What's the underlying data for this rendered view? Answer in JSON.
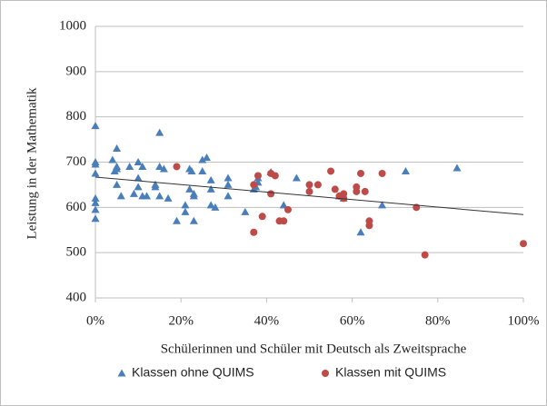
{
  "chart_data": {
    "type": "scatter",
    "x_label": "Schülerinnen und Schüler mit Deutsch als Zweitsprache",
    "y_label": "Leistung in der  Mathematik",
    "xlim": [
      0,
      100
    ],
    "xticks": [
      {
        "value": 0,
        "label": "0%"
      },
      {
        "value": 20,
        "label": "20%"
      },
      {
        "value": 40,
        "label": "40%"
      },
      {
        "value": 60,
        "label": "60%"
      },
      {
        "value": 80,
        "label": "80%"
      },
      {
        "value": 100,
        "label": "100%"
      }
    ],
    "ylim": [
      400,
      1000
    ],
    "yticks": [
      400,
      500,
      600,
      700,
      800,
      900,
      1000
    ],
    "grid": true,
    "legend": "bottom",
    "series": [
      {
        "name": "Klassen ohne QUIMS",
        "color": "#4a7ebb",
        "marker": "triangle",
        "x": [
          0,
          0,
          0,
          0,
          0,
          0,
          0,
          0,
          4,
          4.5,
          5,
          5,
          5,
          5,
          6,
          8,
          9,
          10,
          10,
          10,
          11,
          11,
          12,
          14,
          14,
          15,
          15,
          15,
          16,
          17,
          19,
          21,
          21,
          22,
          22,
          22.5,
          23,
          23,
          23,
          25,
          25,
          26,
          27,
          27,
          27,
          28,
          31,
          31,
          31,
          35,
          37,
          37.5,
          38,
          38,
          41,
          44,
          47,
          57,
          58,
          62,
          67,
          72.5,
          84.5
        ],
        "values": [
          780,
          700,
          695,
          675,
          620,
          610,
          595,
          575,
          705,
          680,
          730,
          690,
          685,
          650,
          625,
          690,
          630,
          700,
          665,
          645,
          690,
          625,
          625,
          650,
          645,
          765,
          690,
          625,
          685,
          620,
          570,
          605,
          590,
          640,
          685,
          680,
          625,
          630,
          570,
          705,
          680,
          710,
          660,
          640,
          605,
          600,
          665,
          650,
          625,
          590,
          640,
          645,
          655,
          665,
          678,
          605,
          665,
          625,
          620,
          545,
          605,
          680,
          687
        ]
      },
      {
        "name": "Klassen mit QUIMS",
        "color": "#be4b48",
        "marker": "circle",
        "x": [
          19,
          37,
          37,
          38,
          39,
          41,
          41,
          42,
          43,
          44,
          45,
          50,
          50,
          52,
          55,
          56,
          57,
          58,
          58,
          61,
          61,
          62,
          63,
          64,
          64,
          67,
          75,
          77,
          100
        ],
        "values": [
          690,
          650,
          545,
          670,
          580,
          675,
          630,
          670,
          570,
          570,
          595,
          650,
          635,
          650,
          680,
          640,
          625,
          630,
          620,
          645,
          635,
          675,
          635,
          570,
          560,
          675,
          600,
          495,
          520
        ]
      }
    ],
    "trendline": {
      "x": [
        0,
        100
      ],
      "values": [
        667,
        584
      ]
    }
  }
}
